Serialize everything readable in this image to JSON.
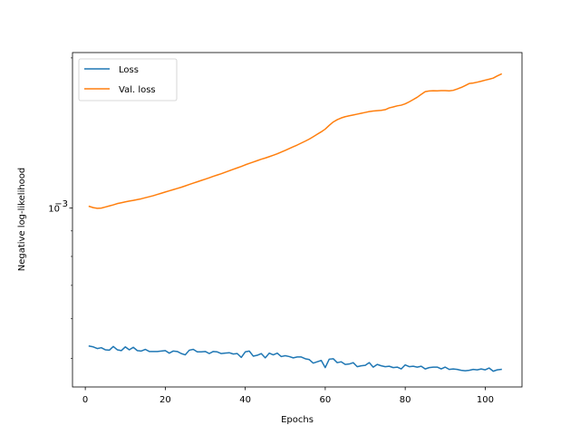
{
  "chart_data": {
    "type": "line",
    "xlabel": "Epochs",
    "ylabel": "Negative log-likelihood",
    "xlim": [
      -3.2,
      109.2
    ],
    "ylim": [
      0.000438,
      0.00205
    ],
    "yscale": "log",
    "xticks": [
      0,
      20,
      40,
      60,
      80,
      100
    ],
    "xtick_labels": [
      "0",
      "20",
      "40",
      "60",
      "80",
      "100"
    ],
    "yticks": [
      0.001
    ],
    "ytick_labels": [
      "10",
      "−3"
    ],
    "legend_position": "upper-left",
    "grid": false,
    "series": [
      {
        "name": "Loss",
        "color": "#1f77b4",
        "x": [
          1,
          2,
          3,
          4,
          5,
          6,
          7,
          8,
          9,
          10,
          11,
          12,
          13,
          14,
          15,
          16,
          17,
          18,
          19,
          20,
          21,
          22,
          23,
          24,
          25,
          26,
          27,
          28,
          29,
          30,
          31,
          32,
          33,
          34,
          35,
          36,
          37,
          38,
          39,
          40,
          41,
          42,
          43,
          44,
          45,
          46,
          47,
          48,
          49,
          50,
          51,
          52,
          53,
          54,
          55,
          56,
          57,
          58,
          59,
          60,
          61,
          62,
          63,
          64,
          65,
          66,
          67,
          68,
          69,
          70,
          71,
          72,
          73,
          74,
          75,
          76,
          77,
          78,
          79,
          80,
          81,
          82,
          83,
          84,
          85,
          86,
          87,
          88,
          89,
          90,
          91,
          92,
          93,
          94,
          95,
          96,
          97,
          98,
          99,
          100,
          101,
          102,
          103,
          104
        ],
        "values": [
          0.000529,
          0.000527,
          0.000523,
          0.000525,
          0.00052,
          0.000519,
          0.000528,
          0.00052,
          0.000518,
          0.000527,
          0.00052,
          0.000526,
          0.000518,
          0.000517,
          0.000521,
          0.000516,
          0.000516,
          0.000516,
          0.000517,
          0.000518,
          0.000512,
          0.000517,
          0.000516,
          0.000511,
          0.000508,
          0.000519,
          0.000521,
          0.000515,
          0.000515,
          0.000516,
          0.000511,
          0.000516,
          0.000515,
          0.000511,
          0.000512,
          0.000513,
          0.00051,
          0.000511,
          0.000502,
          0.000515,
          0.000517,
          0.000505,
          0.000507,
          0.000511,
          0.000501,
          0.000512,
          0.000508,
          0.000512,
          0.000504,
          0.000506,
          0.000504,
          0.000501,
          0.000503,
          0.000503,
          0.000499,
          0.000497,
          0.000489,
          0.000492,
          0.000495,
          0.000479,
          0.000498,
          0.000499,
          0.00049,
          0.000492,
          0.000486,
          0.000487,
          0.00049,
          0.000481,
          0.000483,
          0.000484,
          0.00049,
          0.00048,
          0.000486,
          0.000483,
          0.000481,
          0.000482,
          0.000479,
          0.00048,
          0.000476,
          0.000485,
          0.000481,
          0.000482,
          0.00048,
          0.000482,
          0.000476,
          0.000479,
          0.00048,
          0.00048,
          0.000476,
          0.00048,
          0.000475,
          0.000476,
          0.000475,
          0.000473,
          0.000472,
          0.000473,
          0.000475,
          0.000474,
          0.000476,
          0.000474,
          0.000478,
          0.000471,
          0.000474,
          0.000475
        ]
      },
      {
        "name": "Val. loss",
        "color": "#ff7f0e",
        "x": [
          1,
          2,
          3,
          4,
          5,
          6,
          7,
          8,
          9,
          10,
          11,
          12,
          13,
          14,
          15,
          16,
          17,
          18,
          19,
          20,
          21,
          22,
          23,
          24,
          25,
          26,
          27,
          28,
          29,
          30,
          31,
          32,
          33,
          34,
          35,
          36,
          37,
          38,
          39,
          40,
          41,
          42,
          43,
          44,
          45,
          46,
          47,
          48,
          49,
          50,
          51,
          52,
          53,
          54,
          55,
          56,
          57,
          58,
          59,
          60,
          61,
          62,
          63,
          64,
          65,
          66,
          67,
          68,
          69,
          70,
          71,
          72,
          73,
          74,
          75,
          76,
          77,
          78,
          79,
          80,
          81,
          82,
          83,
          84,
          85,
          86,
          87,
          88,
          89,
          90,
          91,
          92,
          93,
          94,
          95,
          96,
          97,
          98,
          99,
          100,
          101,
          102,
          103,
          104
        ],
        "values": [
          0.001008,
          0.001002,
          0.000999,
          0.001,
          0.001005,
          0.00101,
          0.001015,
          0.001021,
          0.001025,
          0.001029,
          0.001033,
          0.001036,
          0.00104,
          0.001044,
          0.001049,
          0.001054,
          0.001059,
          0.001065,
          0.001071,
          0.001077,
          0.001083,
          0.001089,
          0.001095,
          0.001101,
          0.001108,
          0.001115,
          0.001122,
          0.001129,
          0.001136,
          0.001143,
          0.00115,
          0.001158,
          0.001165,
          0.001172,
          0.00118,
          0.001188,
          0.001196,
          0.001204,
          0.001212,
          0.001221,
          0.001229,
          0.001237,
          0.001245,
          0.001253,
          0.00126,
          0.001268,
          0.001276,
          0.001285,
          0.001295,
          0.001305,
          0.001316,
          0.001327,
          0.001338,
          0.00135,
          0.001362,
          0.001375,
          0.00139,
          0.001406,
          0.001422,
          0.00144,
          0.001465,
          0.001488,
          0.001504,
          0.001516,
          0.001525,
          0.001531,
          0.001537,
          0.001543,
          0.001549,
          0.001555,
          0.001561,
          0.001565,
          0.001568,
          0.00157,
          0.001575,
          0.001588,
          0.001595,
          0.001603,
          0.001608,
          0.001618,
          0.001633,
          0.00165,
          0.001668,
          0.00169,
          0.001712,
          0.001717,
          0.001719,
          0.001718,
          0.00172,
          0.00172,
          0.001718,
          0.001722,
          0.001733,
          0.001745,
          0.00176,
          0.001777,
          0.001781,
          0.001788,
          0.001796,
          0.001805,
          0.001813,
          0.001822,
          0.00184,
          0.001856
        ]
      }
    ]
  }
}
